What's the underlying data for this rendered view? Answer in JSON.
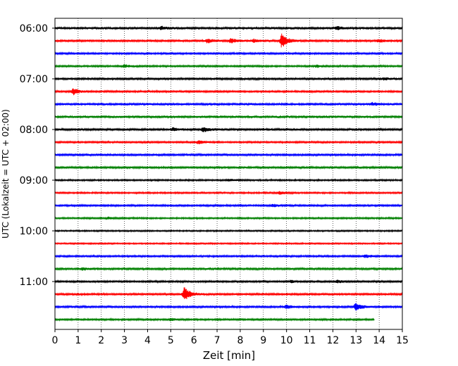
{
  "chart_data": {
    "type": "line",
    "title": "",
    "xlabel": "Zeit  [min]",
    "ylabel": "UTC (Lokalzeit = UTC + 02:00)",
    "xlim": [
      0,
      15
    ],
    "x_ticks": [
      0,
      1,
      2,
      3,
      4,
      5,
      6,
      7,
      8,
      9,
      10,
      11,
      12,
      13,
      14,
      15
    ],
    "y_tick_labels": [
      "06:00",
      "07:00",
      "08:00",
      "09:00",
      "10:00",
      "11:00"
    ],
    "y_tick_traces": [
      0,
      4,
      8,
      12,
      16,
      20
    ],
    "vertical_grid": "dotted",
    "trace_interval_minutes": 15,
    "trace_colors": [
      "#000000",
      "#ff0000",
      "#0000ff",
      "#008000"
    ],
    "traces": [
      {
        "start": "06:00",
        "color": "#000000",
        "base_amp": 0.28,
        "end_min": 15,
        "events": [
          {
            "t": 4.6,
            "amp": 0.35
          },
          {
            "t": 12.2,
            "amp": 0.4
          }
        ]
      },
      {
        "start": "06:15",
        "color": "#ff0000",
        "base_amp": 0.25,
        "end_min": 15,
        "events": [
          {
            "t": 6.6,
            "amp": 0.5
          },
          {
            "t": 7.6,
            "amp": 0.55
          },
          {
            "t": 8.6,
            "amp": 0.45
          },
          {
            "t": 9.8,
            "amp": 1.9
          },
          {
            "t": 14.0,
            "amp": 0.35
          }
        ]
      },
      {
        "start": "06:30",
        "color": "#0000ff",
        "base_amp": 0.22,
        "end_min": 15,
        "events": []
      },
      {
        "start": "06:45",
        "color": "#008000",
        "base_amp": 0.22,
        "end_min": 15,
        "events": [
          {
            "t": 3.0,
            "amp": 0.35
          },
          {
            "t": 11.3,
            "amp": 0.3
          }
        ]
      },
      {
        "start": "07:00",
        "color": "#000000",
        "base_amp": 0.25,
        "end_min": 15,
        "events": [
          {
            "t": 14.2,
            "amp": 0.3
          }
        ]
      },
      {
        "start": "07:15",
        "color": "#ff0000",
        "base_amp": 0.22,
        "end_min": 15,
        "events": [
          {
            "t": 0.8,
            "amp": 0.9
          }
        ]
      },
      {
        "start": "07:30",
        "color": "#0000ff",
        "base_amp": 0.28,
        "end_min": 15,
        "events": [
          {
            "t": 13.7,
            "amp": 0.3
          }
        ]
      },
      {
        "start": "07:45",
        "color": "#008000",
        "base_amp": 0.3,
        "end_min": 15,
        "events": []
      },
      {
        "start": "08:00",
        "color": "#000000",
        "base_amp": 0.25,
        "end_min": 15,
        "events": [
          {
            "t": 5.1,
            "amp": 0.4
          },
          {
            "t": 6.4,
            "amp": 0.75
          }
        ]
      },
      {
        "start": "08:15",
        "color": "#ff0000",
        "base_amp": 0.22,
        "end_min": 15,
        "events": [
          {
            "t": 6.2,
            "amp": 0.45
          }
        ]
      },
      {
        "start": "08:30",
        "color": "#0000ff",
        "base_amp": 0.25,
        "end_min": 15,
        "events": []
      },
      {
        "start": "08:45",
        "color": "#008000",
        "base_amp": 0.25,
        "end_min": 15,
        "events": []
      },
      {
        "start": "09:00",
        "color": "#000000",
        "base_amp": 0.2,
        "end_min": 15,
        "events": [
          {
            "t": 7.5,
            "amp": 0.3
          }
        ]
      },
      {
        "start": "09:15",
        "color": "#ff0000",
        "base_amp": 0.2,
        "end_min": 15,
        "events": [
          {
            "t": 9.7,
            "amp": 0.35
          }
        ]
      },
      {
        "start": "09:30",
        "color": "#0000ff",
        "base_amp": 0.22,
        "end_min": 15,
        "events": [
          {
            "t": 9.4,
            "amp": 0.4
          }
        ]
      },
      {
        "start": "09:45",
        "color": "#008000",
        "base_amp": 0.2,
        "end_min": 15,
        "events": [
          {
            "t": 2.3,
            "amp": 0.3
          }
        ]
      },
      {
        "start": "10:00",
        "color": "#000000",
        "base_amp": 0.18,
        "end_min": 15,
        "events": []
      },
      {
        "start": "10:15",
        "color": "#ff0000",
        "base_amp": 0.18,
        "end_min": 15,
        "events": []
      },
      {
        "start": "10:30",
        "color": "#0000ff",
        "base_amp": 0.22,
        "end_min": 15,
        "events": [
          {
            "t": 13.4,
            "amp": 0.4
          }
        ]
      },
      {
        "start": "10:45",
        "color": "#008000",
        "base_amp": 0.25,
        "end_min": 15,
        "events": [
          {
            "t": 1.2,
            "amp": 0.3
          }
        ]
      },
      {
        "start": "11:00",
        "color": "#000000",
        "base_amp": 0.22,
        "end_min": 15,
        "events": [
          {
            "t": 10.2,
            "amp": 0.3
          },
          {
            "t": 12.2,
            "amp": 0.35
          }
        ]
      },
      {
        "start": "11:15",
        "color": "#ff0000",
        "base_amp": 0.25,
        "end_min": 15,
        "events": [
          {
            "t": 5.6,
            "amp": 1.9
          }
        ]
      },
      {
        "start": "11:30",
        "color": "#0000ff",
        "base_amp": 0.25,
        "end_min": 15,
        "events": [
          {
            "t": 10.0,
            "amp": 0.45
          },
          {
            "t": 13.0,
            "amp": 1.0
          }
        ]
      },
      {
        "start": "11:45",
        "color": "#008000",
        "base_amp": 0.22,
        "end_min": 13.8,
        "events": [
          {
            "t": 5.0,
            "amp": 0.3
          }
        ]
      }
    ]
  }
}
